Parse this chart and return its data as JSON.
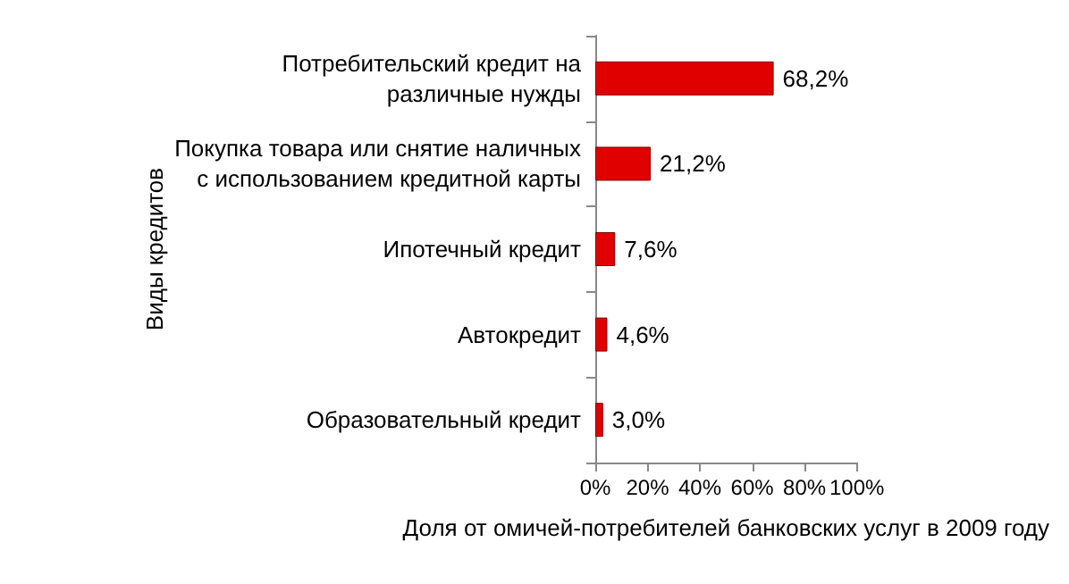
{
  "chart_data": {
    "type": "bar",
    "orientation": "horizontal",
    "categories": [
      "Потребительский кредит на\nразличные нужды",
      "Покупка товара или снятие наличных\nс использованием кредитной карты",
      "Ипотечный кредит",
      "Автокредит",
      "Образовательный кредит"
    ],
    "values": [
      68.2,
      21.2,
      7.6,
      4.6,
      3.0
    ],
    "value_labels": [
      "68,2%",
      "21,2%",
      "7,6%",
      "4,6%",
      "3,0%"
    ],
    "color": "#e00000",
    "xlabel": "Доля от омичей-потребителей банковских услуг в 2009 году",
    "ylabel": "Виды кредитов",
    "xlim": [
      0,
      100
    ],
    "xticks": [
      {
        "value": 0,
        "label": "0%"
      },
      {
        "value": 20,
        "label": "20%"
      },
      {
        "value": 40,
        "label": "40%"
      },
      {
        "value": 60,
        "label": "60%"
      },
      {
        "value": 80,
        "label": "80%"
      },
      {
        "value": 100,
        "label": "100%"
      }
    ],
    "grid": false
  }
}
